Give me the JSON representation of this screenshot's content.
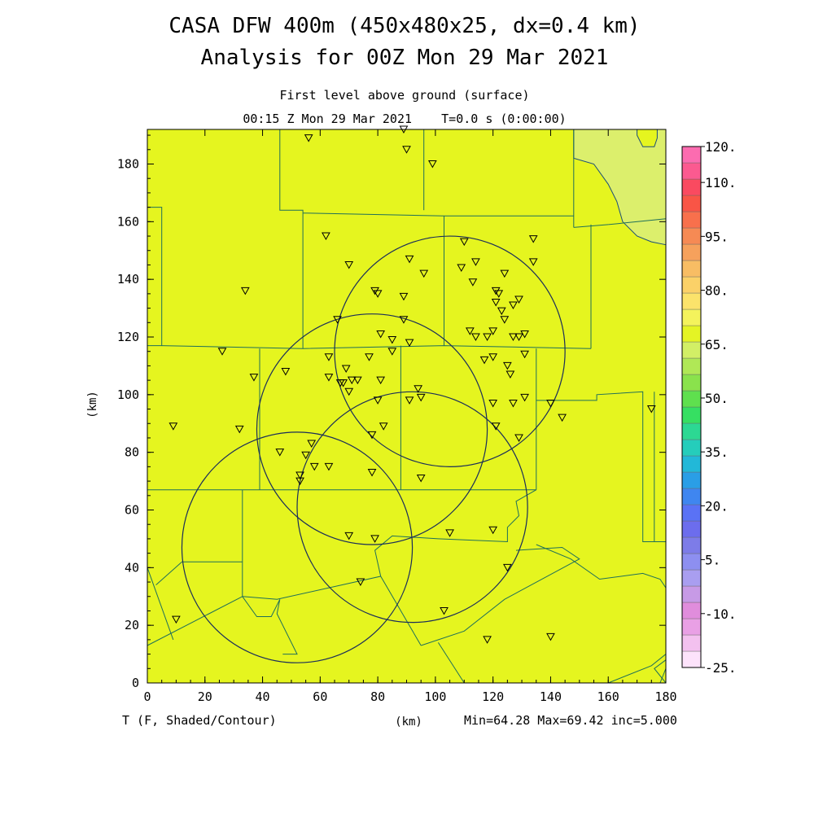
{
  "chart_data": {
    "type": "heatmap",
    "title": "CASA DFW 400m (450x480x25, dx=0.4 km)",
    "subtitle": "Analysis for 00Z Mon 29 Mar 2021",
    "level_label": "First level above ground (surface)",
    "time_label": "00:15 Z Mon 29 Mar 2021    T=0.0 s (0:00:00)",
    "xlabel": "(km)",
    "ylabel": "(km)",
    "xlim": [
      0,
      180
    ],
    "ylim": [
      0,
      192
    ],
    "x_ticks": [
      0,
      20,
      40,
      60,
      80,
      100,
      120,
      140,
      160,
      180
    ],
    "y_ticks": [
      0,
      20,
      40,
      60,
      80,
      100,
      120,
      140,
      160,
      180
    ],
    "variable_label": "T (F, Shaded/Contour)",
    "stats_label": "Min=64.28 Max=69.42 inc=5.000",
    "field": {
      "background_value": 67,
      "background_color": "#e5f51f",
      "cool_region_color": "#dcef6c",
      "cool_region_value": 64.5
    },
    "colorbar": {
      "min": -25,
      "max": 120,
      "step": 5,
      "labels": [
        "120.",
        "110.",
        "95.",
        "80.",
        "65.",
        "50.",
        "35.",
        "20.",
        "5.",
        "-10.",
        "-25."
      ],
      "label_values": [
        120,
        110,
        95,
        80,
        65,
        50,
        35,
        20,
        5,
        -10,
        -25
      ],
      "colors": [
        "#fde3fb",
        "#f3c1ef",
        "#e9a0e5",
        "#e08ddc",
        "#c79ae6",
        "#a99ef0",
        "#8d8ff0",
        "#7d7ce8",
        "#6c6ded",
        "#5a72f5",
        "#3f86f0",
        "#2a9ee6",
        "#22b8d8",
        "#25cdbb",
        "#2cd893",
        "#36df62",
        "#5fe04e",
        "#8ae24c",
        "#b0e856",
        "#d2ef66",
        "#e4f425",
        "#f4f35c",
        "#fbe36b",
        "#fbd168",
        "#f8bd64",
        "#f6a15c",
        "#f68a54",
        "#f8704c",
        "#f95546",
        "#fa4a60",
        "#fb5a90",
        "#fc6cb0"
      ]
    },
    "radars": [
      {
        "center": [
          78,
          88
        ],
        "radius_km": 40
      },
      {
        "center": [
          105,
          115
        ],
        "radius_km": 40
      },
      {
        "center": [
          52,
          47
        ],
        "radius_km": 40
      },
      {
        "center": [
          92,
          61
        ],
        "radius_km": 40
      }
    ],
    "stations": [
      [
        56,
        189
      ],
      [
        89,
        192
      ],
      [
        90,
        185
      ],
      [
        99,
        180
      ],
      [
        62,
        155
      ],
      [
        110,
        153
      ],
      [
        134,
        154
      ],
      [
        70,
        145
      ],
      [
        91,
        147
      ],
      [
        96,
        142
      ],
      [
        109,
        144
      ],
      [
        114,
        146
      ],
      [
        124,
        142
      ],
      [
        113,
        139
      ],
      [
        134,
        146
      ],
      [
        34,
        136
      ],
      [
        79,
        136
      ],
      [
        80,
        135
      ],
      [
        89,
        134
      ],
      [
        121,
        136
      ],
      [
        122,
        135
      ],
      [
        123,
        129
      ],
      [
        121,
        132
      ],
      [
        127,
        131
      ],
      [
        129,
        133
      ],
      [
        66,
        126
      ],
      [
        89,
        126
      ],
      [
        124,
        126
      ],
      [
        81,
        121
      ],
      [
        112,
        122
      ],
      [
        114,
        120
      ],
      [
        118,
        120
      ],
      [
        120,
        122
      ],
      [
        127,
        120
      ],
      [
        129,
        120
      ],
      [
        131,
        121
      ],
      [
        85,
        119
      ],
      [
        91,
        118
      ],
      [
        26,
        115
      ],
      [
        85,
        115
      ],
      [
        131,
        114
      ],
      [
        63,
        113
      ],
      [
        77,
        113
      ],
      [
        117,
        112
      ],
      [
        120,
        113
      ],
      [
        125,
        110
      ],
      [
        126,
        107
      ],
      [
        37,
        106
      ],
      [
        48,
        108
      ],
      [
        63,
        106
      ],
      [
        67,
        104
      ],
      [
        68,
        104
      ],
      [
        69,
        109
      ],
      [
        70,
        101
      ],
      [
        71,
        105
      ],
      [
        73,
        105
      ],
      [
        81,
        105
      ],
      [
        94,
        102
      ],
      [
        80,
        98
      ],
      [
        91,
        98
      ],
      [
        95,
        99
      ],
      [
        120,
        97
      ],
      [
        127,
        97
      ],
      [
        131,
        99
      ],
      [
        140,
        97
      ],
      [
        144,
        92
      ],
      [
        175,
        95
      ],
      [
        9,
        89
      ],
      [
        32,
        88
      ],
      [
        82,
        89
      ],
      [
        121,
        89
      ],
      [
        129,
        85
      ],
      [
        78,
        86
      ],
      [
        46,
        80
      ],
      [
        55,
        79
      ],
      [
        57,
        83
      ],
      [
        58,
        75
      ],
      [
        63,
        75
      ],
      [
        53,
        72
      ],
      [
        53,
        70
      ],
      [
        78,
        73
      ],
      [
        95,
        71
      ],
      [
        70,
        51
      ],
      [
        79,
        50
      ],
      [
        105,
        52
      ],
      [
        120,
        53
      ],
      [
        125,
        40
      ],
      [
        74,
        35
      ],
      [
        103,
        25
      ],
      [
        10,
        22
      ],
      [
        118,
        15
      ],
      [
        140,
        16
      ]
    ],
    "counties": [
      [
        [
          46,
          192
        ],
        [
          46,
          164
        ],
        [
          54,
          164
        ],
        [
          54,
          163
        ]
      ],
      [
        [
          96,
          192
        ],
        [
          96,
          164
        ]
      ],
      [
        [
          148,
          192
        ],
        [
          148,
          158
        ]
      ],
      [
        [
          0,
          165
        ],
        [
          5,
          165
        ],
        [
          5,
          117
        ],
        [
          0,
          117
        ]
      ],
      [
        [
          54,
          163
        ],
        [
          103,
          162
        ],
        [
          103,
          162
        ],
        [
          148,
          162
        ]
      ],
      [
        [
          54,
          163
        ],
        [
          54,
          116
        ]
      ],
      [
        [
          103,
          162
        ],
        [
          103,
          117
        ]
      ],
      [
        [
          148,
          158
        ],
        [
          160,
          159
        ],
        [
          160,
          159
        ]
      ],
      [
        [
          154,
          159
        ],
        [
          154,
          116
        ]
      ],
      [
        [
          160,
          159
        ],
        [
          180,
          161
        ]
      ],
      [
        [
          5,
          117
        ],
        [
          54,
          116
        ],
        [
          103,
          117
        ],
        [
          154,
          116
        ]
      ],
      [
        [
          39,
          116
        ],
        [
          39,
          67
        ],
        [
          39,
          67
        ]
      ],
      [
        [
          88,
          117
        ],
        [
          88,
          67
        ]
      ],
      [
        [
          135,
          116
        ],
        [
          135,
          67
        ]
      ],
      [
        [
          135,
          98
        ],
        [
          156,
          98
        ],
        [
          156,
          100
        ],
        [
          172,
          101
        ],
        [
          172,
          49
        ],
        [
          180,
          49
        ]
      ],
      [
        [
          176,
          101
        ],
        [
          176,
          49
        ]
      ],
      [
        [
          0,
          67
        ],
        [
          39,
          67
        ],
        [
          88,
          67
        ],
        [
          135,
          67
        ]
      ],
      [
        [
          33,
          67
        ],
        [
          33,
          30
        ],
        [
          38,
          23
        ],
        [
          43,
          23
        ],
        [
          46,
          29
        ],
        [
          45,
          24
        ],
        [
          52,
          10
        ],
        [
          47,
          10
        ]
      ],
      [
        [
          3,
          34
        ],
        [
          12,
          42
        ],
        [
          33,
          42
        ]
      ],
      [
        [
          0,
          13
        ],
        [
          33,
          30
        ]
      ],
      [
        [
          9,
          15
        ],
        [
          0,
          40
        ]
      ],
      [
        [
          33,
          30
        ],
        [
          45,
          29
        ],
        [
          81,
          37
        ],
        [
          95,
          13
        ]
      ],
      [
        [
          81,
          37
        ],
        [
          79,
          46
        ],
        [
          85,
          51
        ],
        [
          101,
          50
        ],
        [
          125,
          49
        ],
        [
          125,
          54
        ],
        [
          129,
          58
        ],
        [
          128,
          63
        ],
        [
          135,
          67
        ]
      ],
      [
        [
          95,
          13
        ],
        [
          110,
          18
        ],
        [
          124,
          29
        ],
        [
          150,
          43
        ],
        [
          144,
          47
        ],
        [
          128,
          46
        ]
      ],
      [
        [
          135,
          48
        ],
        [
          147,
          43
        ],
        [
          157,
          36
        ],
        [
          172,
          38
        ],
        [
          178,
          36
        ],
        [
          180,
          33
        ]
      ],
      [
        [
          110,
          0
        ],
        [
          101,
          14
        ]
      ],
      [
        [
          178,
          0
        ],
        [
          180,
          5
        ],
        [
          180,
          10
        ],
        [
          175,
          6
        ],
        [
          160,
          0
        ]
      ],
      [
        [
          180,
          0
        ],
        [
          176,
          5
        ],
        [
          180,
          8
        ]
      ]
    ],
    "cool_region": [
      [
        148,
        192
      ],
      [
        148,
        182
      ],
      [
        155,
        180
      ],
      [
        160,
        173
      ],
      [
        163,
        167
      ],
      [
        165,
        160
      ],
      [
        170,
        155
      ],
      [
        175,
        153
      ],
      [
        180,
        152
      ],
      [
        180,
        192
      ]
    ],
    "cool_inner": [
      [
        170,
        192
      ],
      [
        170,
        190
      ],
      [
        172,
        186
      ],
      [
        176,
        186
      ],
      [
        177,
        189
      ],
      [
        177,
        192
      ]
    ]
  }
}
